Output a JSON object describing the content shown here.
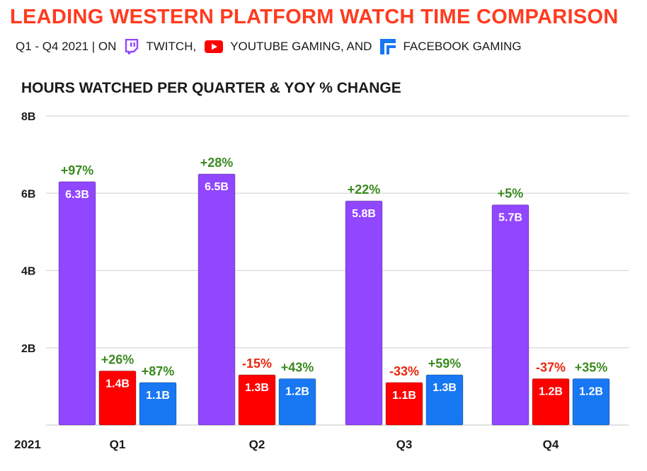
{
  "title": "LEADING WESTERN PLATFORM WATCH TIME COMPARISON",
  "subtitle": {
    "prefix": "Q1  - Q4 2021 | ON",
    "twitch": "TWITCH,",
    "youtube": "YOUTUBE GAMING, AND",
    "facebook": "FACEBOOK GAMING",
    "icons": [
      "twitch-icon",
      "youtube-icon",
      "facebook-gaming-icon"
    ]
  },
  "colors": {
    "title": "#ff3b1f",
    "twitch": "#9146ff",
    "youtube": "#ff0000",
    "facebook": "#1877f2",
    "positive": "#3a8a1f",
    "negative": "#e8270e"
  },
  "chart_data": {
    "type": "bar",
    "title": "HOURS WATCHED PER QUARTER & YOY % CHANGE",
    "xlabel": "2021",
    "ylabel": "",
    "categories": [
      "Q1",
      "Q2",
      "Q3",
      "Q4"
    ],
    "ylim": [
      0,
      8
    ],
    "yticks": [
      2,
      4,
      6,
      8
    ],
    "ytick_labels": [
      "2B",
      "4B",
      "6B",
      "8B"
    ],
    "grid": true,
    "series": [
      {
        "key": "twitch",
        "values": [
          6.3,
          6.5,
          5.8,
          5.7
        ],
        "value_labels": [
          "6.3B",
          "6.5B",
          "5.8B",
          "5.7B"
        ],
        "yoy_labels": [
          "+97%",
          "+28%",
          "+22%",
          "+5%"
        ],
        "yoy_values": [
          97,
          28,
          22,
          5
        ]
      },
      {
        "key": "youtube",
        "values": [
          1.4,
          1.3,
          1.1,
          1.2
        ],
        "value_labels": [
          "1.4B",
          "1.3B",
          "1.1B",
          "1.2B"
        ],
        "yoy_labels": [
          "+26%",
          "-15%",
          "-33%",
          "-37%"
        ],
        "yoy_values": [
          26,
          -15,
          -33,
          -37
        ]
      },
      {
        "key": "facebook",
        "values": [
          1.1,
          1.2,
          1.3,
          1.2
        ],
        "value_labels": [
          "1.1B",
          "1.2B",
          "1.3B",
          "1.2B"
        ],
        "yoy_labels": [
          "+87%",
          "+43%",
          "+59%",
          "+35%"
        ],
        "yoy_values": [
          87,
          43,
          59,
          35
        ]
      }
    ]
  }
}
